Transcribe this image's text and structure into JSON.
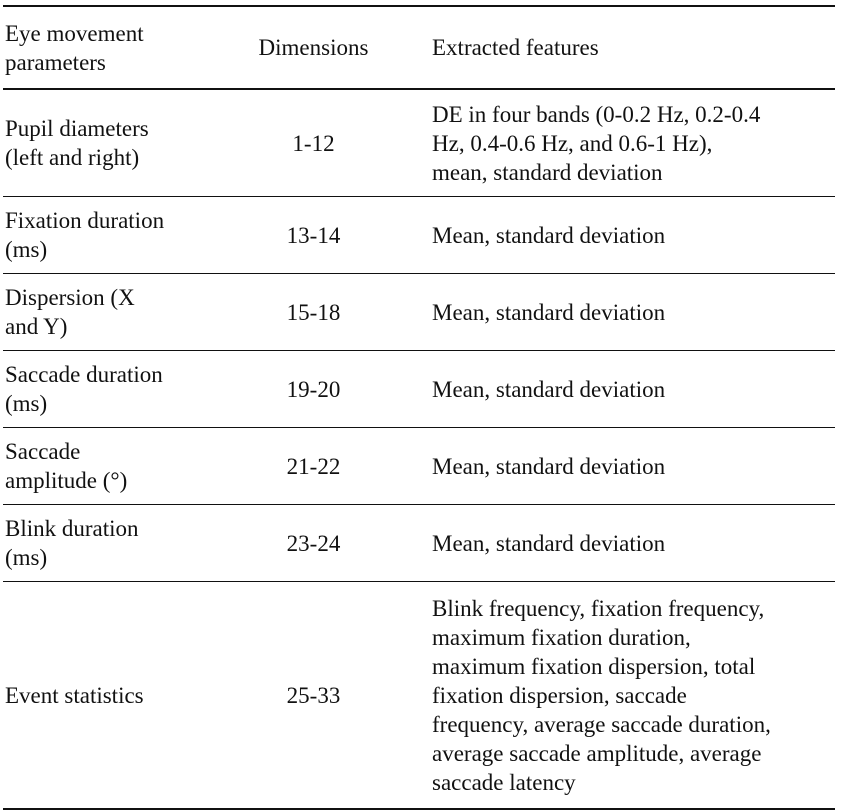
{
  "table": {
    "headers": {
      "col1_line1": "Eye movement",
      "col1_line2": "parameters",
      "col2": "Dimensions",
      "col3": "Extracted features"
    },
    "rows": [
      {
        "param_lines": [
          "Pupil diameters",
          "(left and right)"
        ],
        "dimensions": "1-12",
        "feature_lines": [
          "DE in four bands (0-0.2 Hz, 0.2-0.4",
          "Hz, 0.4-0.6 Hz, and 0.6-1 Hz),",
          "mean, standard deviation"
        ]
      },
      {
        "param_lines": [
          "Fixation duration",
          "(ms)"
        ],
        "dimensions": "13-14",
        "feature_lines": [
          "Mean, standard deviation"
        ]
      },
      {
        "param_lines": [
          "Dispersion (X",
          "and Y)"
        ],
        "dimensions": "15-18",
        "feature_lines": [
          "Mean, standard deviation"
        ]
      },
      {
        "param_lines": [
          "Saccade duration",
          "(ms)"
        ],
        "dimensions": "19-20",
        "feature_lines": [
          "Mean, standard deviation"
        ]
      },
      {
        "param_lines": [
          "Saccade",
          "amplitude (°)"
        ],
        "dimensions": "21-22",
        "feature_lines": [
          "Mean, standard deviation"
        ]
      },
      {
        "param_lines": [
          "Blink duration",
          "(ms)"
        ],
        "dimensions": "23-24",
        "feature_lines": [
          "Mean, standard deviation"
        ]
      },
      {
        "param_lines": [
          "Event statistics"
        ],
        "dimensions": "25-33",
        "feature_lines": [
          "Blink frequency, fixation frequency,",
          "maximum fixation duration,",
          "maximum fixation dispersion, total",
          "fixation dispersion, saccade",
          "frequency, average saccade duration,",
          "average saccade amplitude, average",
          "saccade latency"
        ]
      }
    ]
  }
}
